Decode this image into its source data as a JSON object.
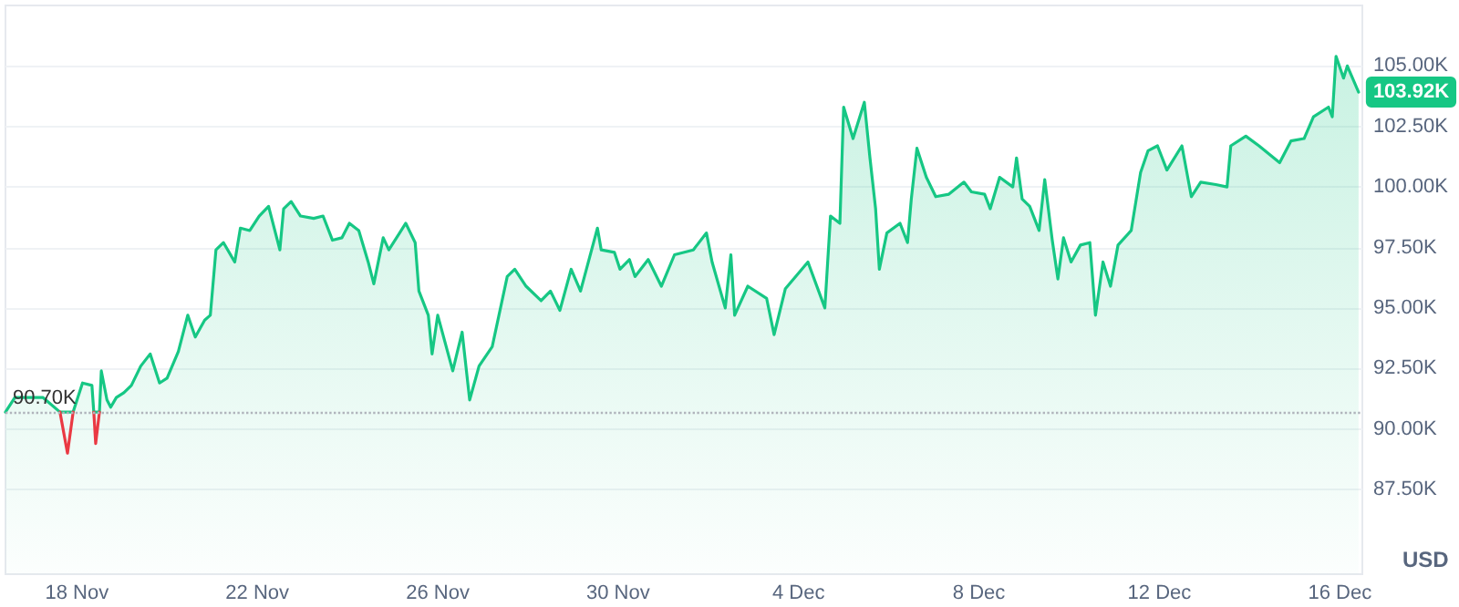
{
  "chart_data": {
    "type": "area",
    "ylabel": "USD",
    "xlim": [
      "--11-16T10:00",
      "--12-16T12:00"
    ],
    "xticks": [
      {
        "value": "--11-18",
        "label": "18 Nov"
      },
      {
        "value": "--11-22",
        "label": "22 Nov"
      },
      {
        "value": "--11-26",
        "label": "26 Nov"
      },
      {
        "value": "--11-30",
        "label": "30 Nov"
      },
      {
        "value": "--12-04",
        "label": "4 Dec"
      },
      {
        "value": "--12-08",
        "label": "8 Dec"
      },
      {
        "value": "--12-12",
        "label": "12 Dec"
      },
      {
        "value": "--12-16",
        "label": "16 Dec"
      }
    ],
    "ylim": [
      84000,
      107500
    ],
    "yticks": [
      {
        "value": 87500,
        "label": "87.50K"
      },
      {
        "value": 90000,
        "label": "90.00K"
      },
      {
        "value": 92500,
        "label": "92.50K"
      },
      {
        "value": 95000,
        "label": "95.00K"
      },
      {
        "value": 97500,
        "label": "97.50K"
      },
      {
        "value": 100000,
        "label": "100.00K"
      },
      {
        "value": 102500,
        "label": "102.50K"
      },
      {
        "value": 105000,
        "label": "105.00K"
      }
    ],
    "grid": "y",
    "marker": "none",
    "line_style": "solid",
    "ref_lines": [
      {
        "axis": "y",
        "value": 90700,
        "label": "90.70K",
        "color": "#b0b4bc",
        "line_style": "dotted"
      }
    ],
    "annotations": [
      {
        "text": "103.92K",
        "x": "--12-16T10:00",
        "y": 103920
      }
    ],
    "series": [
      {
        "color": "#16c784",
        "x": [
          "--11-16T10:00",
          "--11-16T15:00",
          "--11-17T06:00",
          "--11-17T15:00",
          "--11-17T22:00",
          "--11-18T03:00",
          "--11-18T08:00",
          "--11-18T09:00",
          "--11-18T12:00",
          "--11-18T13:00",
          "--11-18T16:00",
          "--11-18T18:00",
          "--11-18T21:00",
          "--11-19T01:00",
          "--11-19T05:00",
          "--11-19T10:00",
          "--11-19T15:00",
          "--11-19T20:00",
          "--11-20T00:00",
          "--11-20T06:00",
          "--11-20T11:00",
          "--11-20T15:00",
          "--11-20T20:00",
          "--11-20T23:00",
          "--11-21T02:00",
          "--11-21T06:00",
          "--11-21T12:00",
          "--11-21T15:00",
          "--11-21T20:00",
          "--11-22T01:00",
          "--11-22T06:00",
          "--11-22T12:00",
          "--11-22T14:00",
          "--11-22T18:00",
          "--11-22T23:00",
          "--11-23T06:00",
          "--11-23T11:00",
          "--11-23T16:00",
          "--11-23T21:00",
          "--11-24T01:00",
          "--11-24T06:00",
          "--11-24T11:00",
          "--11-24T14:00",
          "--11-24T19:00",
          "--11-24T22:00",
          "--11-25T07:00",
          "--11-25T12:00",
          "--11-25T14:00",
          "--11-25T19:00",
          "--11-25T21:00",
          "--11-26T00:00",
          "--11-26T08:00",
          "--11-26T13:00",
          "--11-26T17:00",
          "--11-26T22:00",
          "--11-27T05:00",
          "--11-27T13:00",
          "--11-27T17:00",
          "--11-27T23:00",
          "--11-28T07:00",
          "--11-28T12:00",
          "--11-28T17:00",
          "--11-28T23:00",
          "--11-29T04:00",
          "--11-29T13:00",
          "--11-29T15:00",
          "--11-29T22:00",
          "--11-30T01:00",
          "--11-30T06:00",
          "--11-30T09:00",
          "--11-30T16:00",
          "--11-30T23:00",
          "--12-01T06:00",
          "--12-01T16:00",
          "--12-01T23:00",
          "--12-02T02:00",
          "--12-02T09:00",
          "--12-02T12:00",
          "--12-02T14:00",
          "--12-02T21:00",
          "--12-03T07:00",
          "--12-03T11:00",
          "--12-03T17:00",
          "--12-04T05:00",
          "--12-04T14:00",
          "--12-04T17:00",
          "--12-04T22:00",
          "--12-05T00:00",
          "--12-05T05:00",
          "--12-05T11:00",
          "--12-05T14:00",
          "--12-05T17:00",
          "--12-05T19:00",
          "--12-05T23:00",
          "--12-06T06:00",
          "--12-06T10:00",
          "--12-06T12:00",
          "--12-06T15:00",
          "--12-06T20:00",
          "--12-07T01:00",
          "--12-07T08:00",
          "--12-07T16:00",
          "--12-07T20:00",
          "--12-08T03:00",
          "--12-08T06:00",
          "--12-08T11:00",
          "--12-08T18:00",
          "--12-08T20:00",
          "--12-08T23:00",
          "--12-09T03:00",
          "--12-09T08:00",
          "--12-09T11:00",
          "--12-09T15:00",
          "--12-09T18:00",
          "--12-09T21:00",
          "--12-10T01:00",
          "--12-10T06:00",
          "--12-10T11:00",
          "--12-10T14:00",
          "--12-10T18:00",
          "--12-10T22:00",
          "--12-11T02:00",
          "--12-11T09:00",
          "--12-11T14:00",
          "--12-11T18:00",
          "--12-11T23:00",
          "--12-12T04:00",
          "--12-12T12:00",
          "--12-12T17:00",
          "--12-12T22:00",
          "--12-13T06:00",
          "--12-13T12:00",
          "--12-13T14:00",
          "--12-13T22:00",
          "--12-14T05:00",
          "--12-14T16:00",
          "--12-14T22:00",
          "--12-15T05:00",
          "--12-15T10:00",
          "--12-15T18:00",
          "--12-15T20:00",
          "--12-15T22:00",
          "--12-16T02:00",
          "--12-16T04:00",
          "--12-16T10:00"
        ],
        "values": [
          90700,
          91300,
          91300,
          90700,
          90700,
          91900,
          91800,
          90700,
          90700,
          92400,
          91200,
          90900,
          91300,
          91500,
          91800,
          92600,
          93100,
          91900,
          92100,
          93200,
          94700,
          93800,
          94500,
          94700,
          97400,
          97700,
          96900,
          98300,
          98200,
          98800,
          99200,
          97400,
          99100,
          99400,
          98800,
          98700,
          98800,
          97800,
          97900,
          98500,
          98200,
          96900,
          96000,
          97900,
          97400,
          98500,
          97700,
          95700,
          94700,
          93100,
          94700,
          92400,
          94000,
          91200,
          92600,
          93400,
          96300,
          96600,
          95900,
          95300,
          95700,
          94900,
          96600,
          95700,
          98300,
          97400,
          97300,
          96600,
          97000,
          96300,
          97000,
          95900,
          97200,
          97400,
          98100,
          96900,
          95000,
          97200,
          94700,
          95900,
          95400,
          93900,
          95800,
          96900,
          95000,
          98800,
          98500,
          103300,
          102000,
          103500,
          101200,
          99100,
          96600,
          98100,
          98500,
          97700,
          99500,
          101600,
          100400,
          99600,
          99700,
          100200,
          99800,
          99700,
          99100,
          100400,
          100000,
          101200,
          99500,
          99200,
          98200,
          100300,
          97800,
          96200,
          97900,
          96900,
          97600,
          97700,
          94700,
          96900,
          95900,
          97600,
          98200,
          100600,
          101500,
          101700,
          100700,
          101700,
          99600,
          100200,
          100100,
          100000,
          101700,
          102100,
          101700,
          101000,
          101900,
          102000,
          102900,
          103300,
          102900,
          105400,
          104500,
          105000,
          103920
        ]
      },
      {
        "type": "line",
        "color": "#ea3943",
        "x": [
          "--11-17T15:00",
          "--11-17T19:00",
          "--11-17T22:00",
          "--11-18T02:00",
          "--11-18T09:00",
          "--11-18T10:00",
          "--11-18T12:00"
        ],
        "values": [
          90700,
          89000,
          90700,
          null,
          90700,
          89400,
          90700
        ]
      }
    ]
  }
}
